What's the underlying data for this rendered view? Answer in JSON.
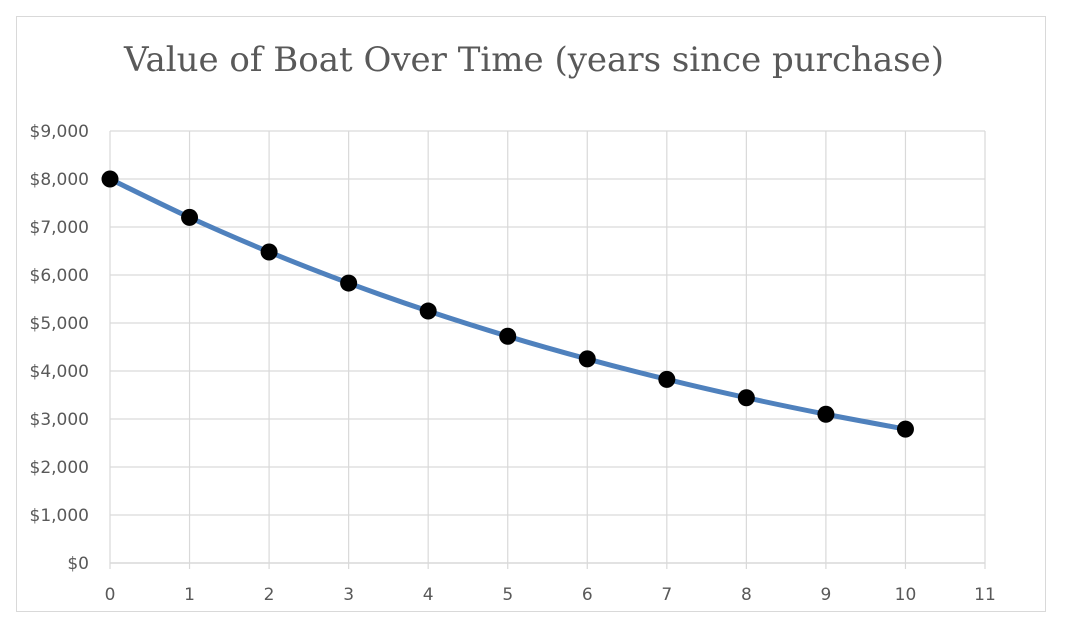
{
  "chart_data": {
    "type": "line",
    "title": "Value of Boat Over Time (years since purchase)",
    "xlabel": "",
    "ylabel": "",
    "x": [
      0,
      1,
      2,
      3,
      4,
      5,
      6,
      7,
      8,
      9,
      10
    ],
    "series": [
      {
        "values": [
          8000,
          7200,
          6480,
          5832,
          5249,
          4724,
          4252,
          3826,
          3443,
          3099,
          2789
        ],
        "line_color": "#4f81bd",
        "marker_color": "#000000",
        "smooth": true
      }
    ],
    "xlim": [
      0,
      11
    ],
    "ylim": [
      0,
      9000
    ],
    "x_ticks": [
      "0",
      "1",
      "2",
      "3",
      "4",
      "5",
      "6",
      "7",
      "8",
      "9",
      "10",
      "11"
    ],
    "y_ticks": [
      "$0",
      "$1,000",
      "$2,000",
      "$3,000",
      "$4,000",
      "$5,000",
      "$6,000",
      "$7,000",
      "$8,000",
      "$9,000"
    ],
    "grid": true,
    "legend": "none",
    "grid_color": "#d9d9d9"
  }
}
